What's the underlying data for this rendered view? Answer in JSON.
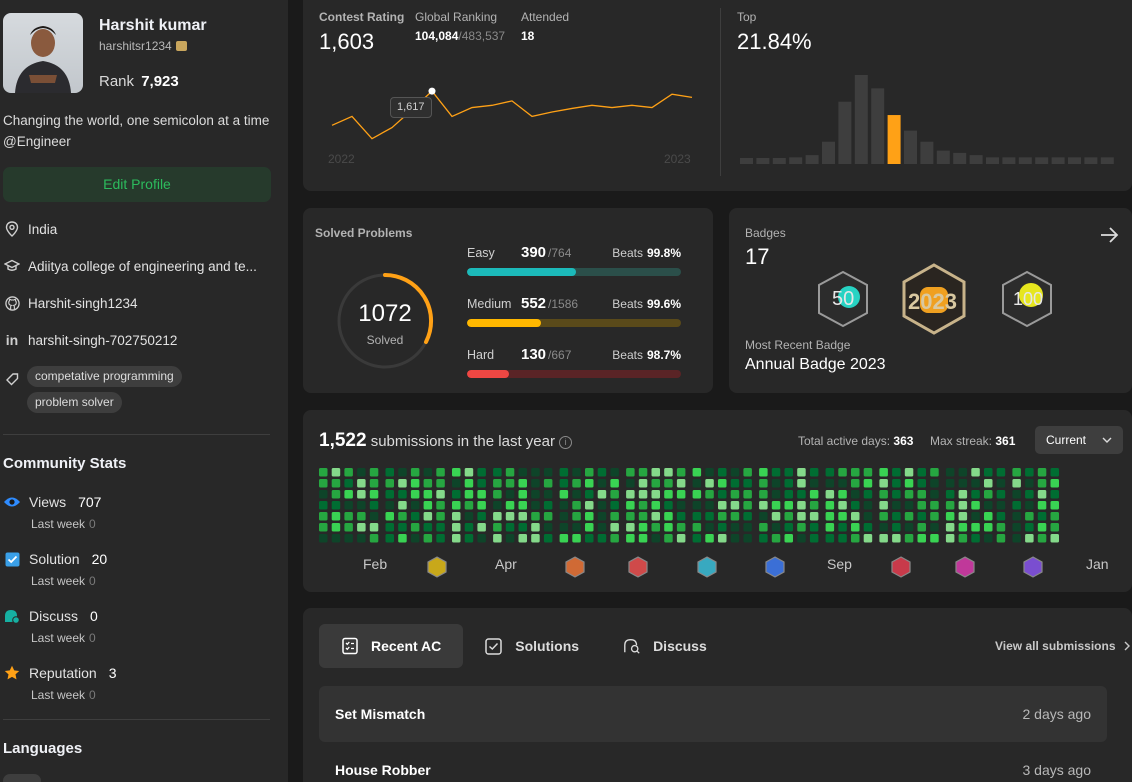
{
  "profile": {
    "name": "Harshit kumar",
    "username": "harshitsr1234",
    "rank_label": "Rank",
    "rank": "7,923",
    "bio": "Changing the world, one semicolon at a time @Engineer",
    "edit_label": "Edit Profile",
    "location": "India",
    "college": "Adiitya college of engineering and te...",
    "github": "Harshit-singh1234",
    "linkedin": "harshit-singh-702750212",
    "tags": [
      "competative programming",
      "problem solver"
    ]
  },
  "community": {
    "title": "Community Stats",
    "items": [
      {
        "label": "Views",
        "value": "707",
        "sub": "Last week",
        "sub_value": "0",
        "icon": "eye-icon",
        "color": "#2f8cff"
      },
      {
        "label": "Solution",
        "value": "20",
        "sub": "Last week",
        "sub_value": "0",
        "icon": "check-square-icon",
        "color": "#3aa0e8"
      },
      {
        "label": "Discuss",
        "value": "0",
        "sub": "Last week",
        "sub_value": "0",
        "icon": "chat-icon",
        "color": "#16b0a2"
      },
      {
        "label": "Reputation",
        "value": "3",
        "sub": "Last week",
        "sub_value": "0",
        "icon": "star-icon",
        "color": "#ffa116"
      }
    ]
  },
  "languages_title": "Languages",
  "contest": {
    "rating_label": "Contest Rating",
    "rating": "1,603",
    "ranking_label": "Global Ranking",
    "ranking": "104,084",
    "ranking_total": "/483,537",
    "attended_label": "Attended",
    "attended": "18",
    "tooltip": "1,617",
    "year_start": "2022",
    "year_end": "2023",
    "top_label": "Top",
    "top_value": "21.84%",
    "line_values": [
      1540,
      1560,
      1510,
      1535,
      1575,
      1617,
      1560,
      1580,
      1585,
      1595,
      1560,
      1570,
      1578,
      1585,
      1580,
      1585,
      1580,
      1610,
      1603
    ],
    "histogram": [
      2,
      2,
      2,
      3,
      4,
      10,
      28,
      40,
      34,
      22,
      15,
      10,
      6,
      5,
      4,
      3,
      3,
      3,
      3,
      3,
      3,
      3,
      3,
      3,
      3
    ],
    "histogram_highlight_index": 9
  },
  "solved": {
    "title": "Solved Problems",
    "total": "1072",
    "total_label": "Solved",
    "rows": [
      {
        "label": "Easy",
        "count": "390",
        "total": "/764",
        "beats_label": "Beats",
        "beats": "99.8%",
        "fraction": 0.51,
        "fill": "#1cbaba",
        "track": "#2b4f4a"
      },
      {
        "label": "Medium",
        "count": "552",
        "total": "/1586",
        "beats_label": "Beats",
        "beats": "99.6%",
        "fraction": 0.348,
        "fill": "#ffb800",
        "track": "#5a4a1a"
      },
      {
        "label": "Hard",
        "count": "130",
        "total": "/667",
        "beats_label": "Beats",
        "beats": "98.7%",
        "fraction": 0.195,
        "fill": "#ef4743",
        "track": "#5a2426"
      }
    ]
  },
  "badges": {
    "title": "Badges",
    "count": "17",
    "recent_label": "Most Recent Badge",
    "recent_name": "Annual Badge 2023",
    "badge_text": [
      "50",
      "2023",
      "100"
    ]
  },
  "submissions": {
    "count": "1,522",
    "label": "submissions in the last year",
    "active_label": "Total active days:",
    "active_value": "363",
    "streak_label": "Max streak:",
    "streak_value": "361",
    "select_value": "Current",
    "months": [
      "Feb",
      "Apr",
      "Sep",
      "Jan"
    ]
  },
  "recent": {
    "tabs": [
      "Recent AC",
      "Solutions",
      "Discuss"
    ],
    "view_all": "View all submissions",
    "items": [
      {
        "title": "Set Mismatch",
        "time": "2 days ago"
      },
      {
        "title": "House Robber",
        "time": "3 days ago"
      }
    ]
  }
}
